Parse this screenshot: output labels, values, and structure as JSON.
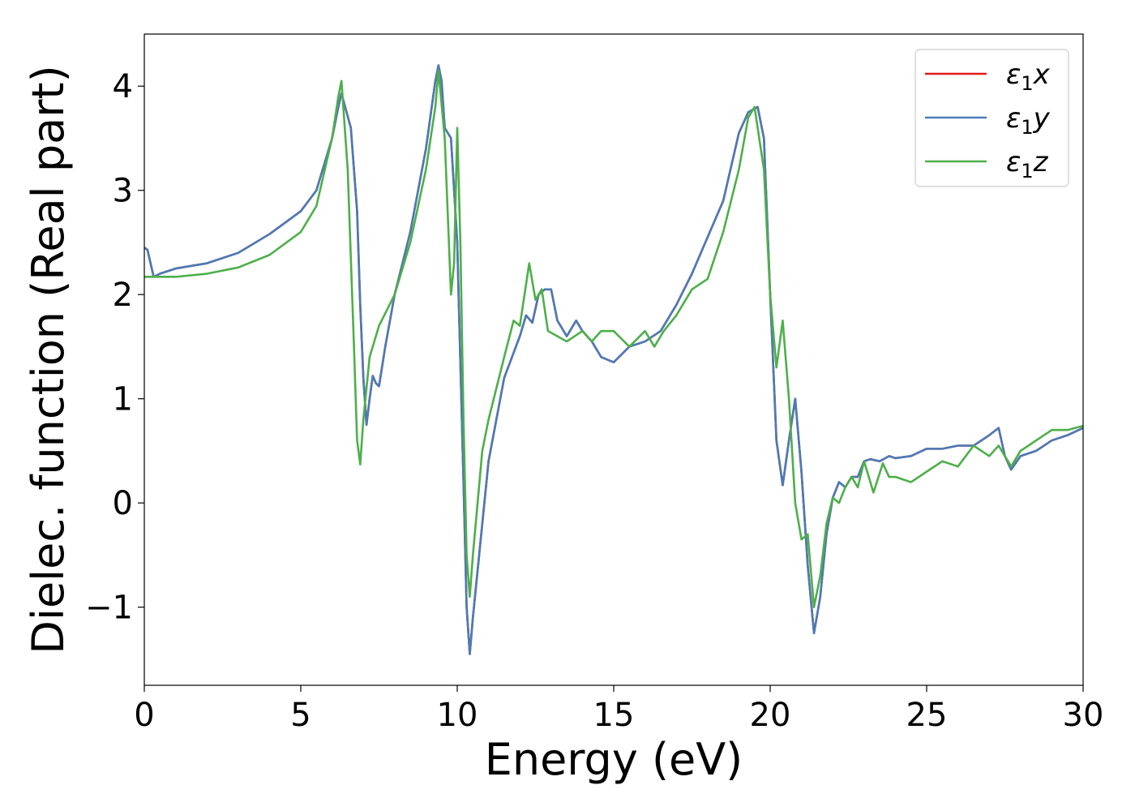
{
  "chart_data": {
    "type": "line",
    "xlabel": "Energy (eV)",
    "ylabel": "Dielec. function (Real part)",
    "xlim": [
      0,
      30
    ],
    "ylim": [
      -1.75,
      4.5
    ],
    "x_ticks": [
      0,
      5,
      10,
      15,
      20,
      25,
      30
    ],
    "y_ticks": [
      -1,
      0,
      1,
      2,
      3,
      4
    ],
    "y_tick_labels": [
      "−1",
      "0",
      "1",
      "2",
      "3",
      "4"
    ],
    "grid": false,
    "legend_position": "top-right",
    "series": [
      {
        "name": "ε₁x",
        "label_base": "ε",
        "label_sub": "1",
        "label_var": "x",
        "color": "#e41a1c",
        "x": [
          0,
          0.1,
          0.2,
          0.3,
          0.5,
          1,
          2,
          3,
          4,
          5,
          5.5,
          6,
          6.2,
          6.3,
          6.6,
          6.8,
          6.9,
          7.0,
          7.1,
          7.2,
          7.3,
          7.4,
          7.5,
          7.7,
          8,
          8.5,
          9,
          9.3,
          9.4,
          9.5,
          9.6,
          9.8,
          10.0,
          10.2,
          10.3,
          10.4,
          10.5,
          10.8,
          11,
          11.5,
          12,
          12.2,
          12.4,
          12.6,
          12.8,
          13.0,
          13.2,
          13.5,
          13.8,
          14,
          14.3,
          14.6,
          15.0,
          15.5,
          16,
          16.5,
          17,
          17.5,
          18,
          18.5,
          19,
          19.3,
          19.6,
          19.8,
          20.0,
          20.2,
          20.4,
          20.6,
          20.8,
          21.0,
          21.2,
          21.4,
          21.6,
          21.8,
          22.0,
          22.2,
          22.4,
          22.6,
          22.8,
          23.0,
          23.2,
          23.5,
          23.8,
          24,
          24.5,
          25,
          25.5,
          26,
          26.5,
          27,
          27.3,
          27.5,
          27.7,
          28,
          28.5,
          29,
          29.5,
          30
        ],
        "values": [
          2.45,
          2.43,
          2.3,
          2.17,
          2.2,
          2.25,
          2.3,
          2.4,
          2.58,
          2.8,
          3.0,
          3.5,
          3.8,
          3.93,
          3.6,
          2.8,
          1.9,
          1.2,
          0.75,
          1.0,
          1.22,
          1.15,
          1.12,
          1.5,
          2.0,
          2.6,
          3.4,
          4.05,
          4.2,
          4.05,
          3.6,
          3.5,
          2.5,
          0.2,
          -1.0,
          -1.45,
          -1.1,
          -0.2,
          0.4,
          1.2,
          1.6,
          1.8,
          1.73,
          2.0,
          2.05,
          2.05,
          1.75,
          1.6,
          1.75,
          1.65,
          1.55,
          1.4,
          1.35,
          1.5,
          1.55,
          1.65,
          1.9,
          2.2,
          2.55,
          2.9,
          3.55,
          3.75,
          3.8,
          3.5,
          2.0,
          0.6,
          0.17,
          0.6,
          1.0,
          0.3,
          -0.6,
          -1.25,
          -0.9,
          -0.3,
          0.05,
          0.2,
          0.15,
          0.25,
          0.25,
          0.4,
          0.42,
          0.4,
          0.45,
          0.43,
          0.45,
          0.52,
          0.52,
          0.55,
          0.55,
          0.65,
          0.72,
          0.45,
          0.32,
          0.45,
          0.5,
          0.6,
          0.65,
          0.72
        ]
      },
      {
        "name": "ε₁y",
        "label_base": "ε",
        "label_sub": "1",
        "label_var": "y",
        "color": "#4a7bb7",
        "x": [
          0,
          0.1,
          0.2,
          0.3,
          0.5,
          1,
          2,
          3,
          4,
          5,
          5.5,
          6,
          6.2,
          6.3,
          6.6,
          6.8,
          6.9,
          7.0,
          7.1,
          7.2,
          7.3,
          7.4,
          7.5,
          7.7,
          8,
          8.5,
          9,
          9.3,
          9.4,
          9.5,
          9.6,
          9.8,
          10.0,
          10.2,
          10.3,
          10.4,
          10.5,
          10.8,
          11,
          11.5,
          12,
          12.2,
          12.4,
          12.6,
          12.8,
          13.0,
          13.2,
          13.5,
          13.8,
          14,
          14.3,
          14.6,
          15.0,
          15.5,
          16,
          16.5,
          17,
          17.5,
          18,
          18.5,
          19,
          19.3,
          19.6,
          19.8,
          20.0,
          20.2,
          20.4,
          20.6,
          20.8,
          21.0,
          21.2,
          21.4,
          21.6,
          21.8,
          22.0,
          22.2,
          22.4,
          22.6,
          22.8,
          23.0,
          23.2,
          23.5,
          23.8,
          24,
          24.5,
          25,
          25.5,
          26,
          26.5,
          27,
          27.3,
          27.5,
          27.7,
          28,
          28.5,
          29,
          29.5,
          30
        ],
        "values": [
          2.45,
          2.43,
          2.3,
          2.17,
          2.2,
          2.25,
          2.3,
          2.4,
          2.58,
          2.8,
          3.0,
          3.5,
          3.8,
          3.93,
          3.6,
          2.8,
          1.9,
          1.2,
          0.75,
          1.0,
          1.22,
          1.15,
          1.12,
          1.5,
          2.0,
          2.6,
          3.4,
          4.05,
          4.2,
          4.05,
          3.6,
          3.5,
          2.5,
          0.2,
          -1.0,
          -1.45,
          -1.1,
          -0.2,
          0.4,
          1.2,
          1.6,
          1.8,
          1.73,
          2.0,
          2.05,
          2.05,
          1.75,
          1.6,
          1.75,
          1.65,
          1.55,
          1.4,
          1.35,
          1.5,
          1.55,
          1.65,
          1.9,
          2.2,
          2.55,
          2.9,
          3.55,
          3.75,
          3.8,
          3.5,
          2.0,
          0.6,
          0.17,
          0.6,
          1.0,
          0.3,
          -0.6,
          -1.25,
          -0.9,
          -0.3,
          0.05,
          0.2,
          0.15,
          0.25,
          0.25,
          0.4,
          0.42,
          0.4,
          0.45,
          0.43,
          0.45,
          0.52,
          0.52,
          0.55,
          0.55,
          0.65,
          0.72,
          0.45,
          0.32,
          0.45,
          0.5,
          0.6,
          0.65,
          0.72
        ]
      },
      {
        "name": "ε₁z",
        "label_base": "ε",
        "label_sub": "1",
        "label_var": "z",
        "color": "#4daf4a",
        "x": [
          0,
          1,
          2,
          3,
          4,
          5,
          5.5,
          6,
          6.2,
          6.3,
          6.5,
          6.7,
          6.8,
          6.9,
          7.0,
          7.2,
          7.5,
          8,
          8.5,
          9,
          9.3,
          9.4,
          9.6,
          9.8,
          9.9,
          10.0,
          10.1,
          10.2,
          10.3,
          10.4,
          10.5,
          10.8,
          11,
          11.5,
          11.8,
          12.0,
          12.3,
          12.5,
          12.7,
          12.9,
          13.2,
          13.5,
          14,
          14.3,
          14.6,
          15.0,
          15.5,
          16,
          16.3,
          16.6,
          17,
          17.5,
          18,
          18.5,
          19,
          19.3,
          19.5,
          19.8,
          20.0,
          20.2,
          20.4,
          20.6,
          20.8,
          21.0,
          21.2,
          21.4,
          21.6,
          21.8,
          22.0,
          22.2,
          22.4,
          22.6,
          22.8,
          23.0,
          23.3,
          23.6,
          23.8,
          24,
          24.5,
          25,
          25.5,
          26,
          26.5,
          27,
          27.3,
          27.5,
          27.7,
          28,
          28.5,
          29,
          29.5,
          30
        ],
        "values": [
          2.17,
          2.17,
          2.2,
          2.26,
          2.38,
          2.6,
          2.85,
          3.5,
          3.9,
          4.05,
          3.2,
          1.5,
          0.6,
          0.37,
          0.8,
          1.4,
          1.7,
          2.0,
          2.5,
          3.2,
          3.8,
          4.15,
          3.5,
          2.0,
          2.3,
          3.6,
          2.5,
          0.8,
          -0.5,
          -0.9,
          -0.5,
          0.5,
          0.8,
          1.4,
          1.75,
          1.7,
          2.3,
          1.95,
          2.05,
          1.65,
          1.6,
          1.55,
          1.65,
          1.55,
          1.65,
          1.65,
          1.5,
          1.65,
          1.5,
          1.65,
          1.8,
          2.05,
          2.15,
          2.6,
          3.2,
          3.7,
          3.8,
          3.2,
          2.0,
          1.3,
          1.75,
          1.0,
          0.0,
          -0.35,
          -0.3,
          -1.0,
          -0.7,
          -0.2,
          0.05,
          0.0,
          0.15,
          0.25,
          0.15,
          0.4,
          0.1,
          0.38,
          0.25,
          0.25,
          0.2,
          0.3,
          0.4,
          0.35,
          0.55,
          0.45,
          0.55,
          0.45,
          0.35,
          0.5,
          0.6,
          0.7,
          0.7,
          0.74
        ]
      }
    ]
  }
}
